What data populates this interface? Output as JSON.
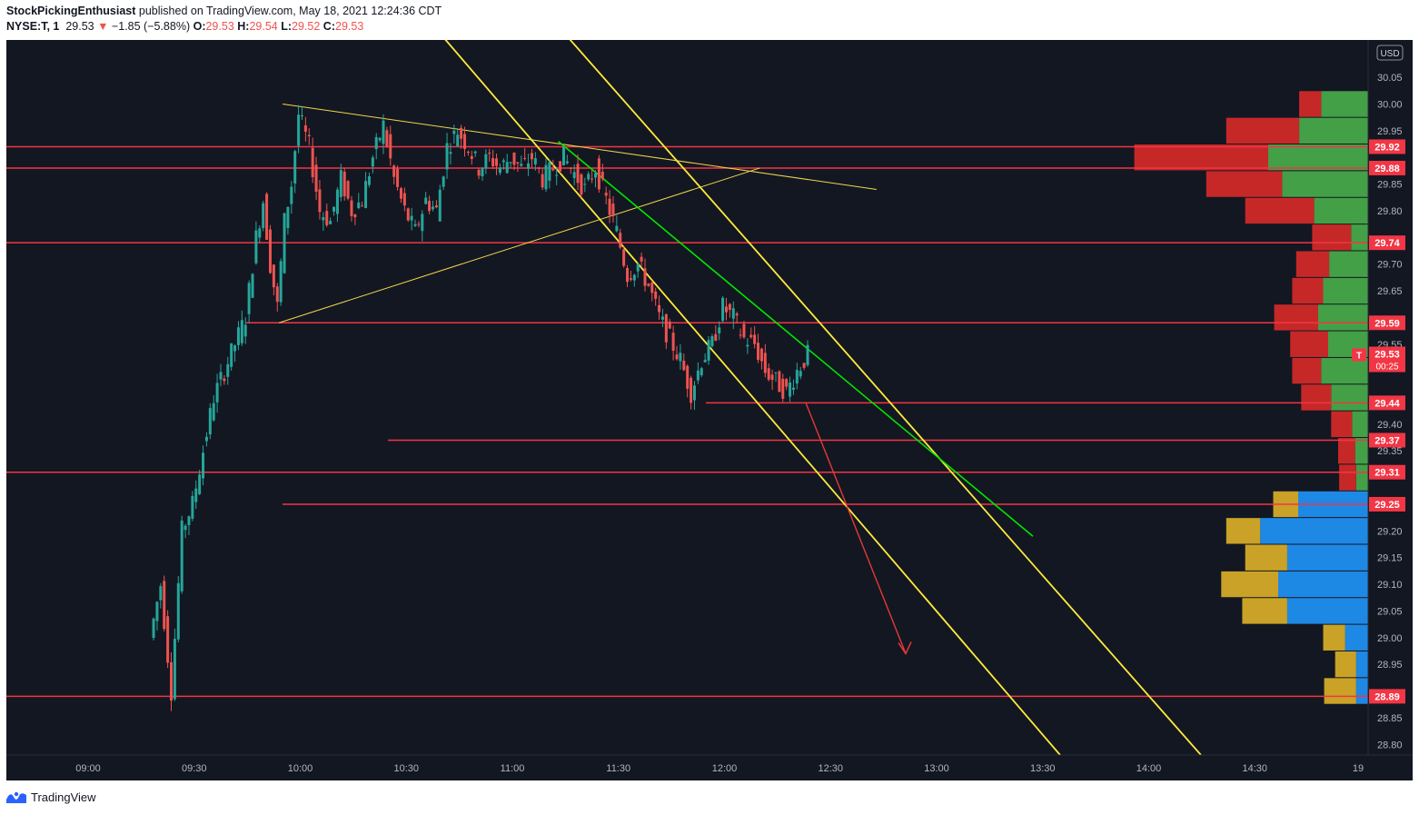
{
  "header": {
    "author": "StockPickingEnthusiast",
    "published": "published on TradingView.com, May 18, 2021 12:24:36 CDT",
    "symbol": "NYSE:T, 1",
    "last": "29.53",
    "change": "−1.85 (−5.88%)",
    "open_label": "O:",
    "open": "29.53",
    "high_label": "H:",
    "high": "29.54",
    "low_label": "L:",
    "low": "29.52",
    "close_label": "C:",
    "close": "29.53"
  },
  "footer": {
    "brand": "TradingView"
  },
  "colors": {
    "background": "#131722",
    "up": "#26a69a",
    "down": "#ef5350",
    "level_line": "#f23645",
    "channel": "#ffeb3b",
    "triangle": "#f2d64b",
    "trendline": "#00e600",
    "arrow": "#e53935",
    "vp_up": "#43a047",
    "vp_down": "#c62828",
    "vp_up_lower": "#1e88e5",
    "vp_down_lower": "#c9a227"
  },
  "chart_data": {
    "type": "candlestick",
    "currency": "USD",
    "ylim": [
      28.78,
      30.12
    ],
    "x_tick_labels": [
      "09:00",
      "09:30",
      "10:00",
      "10:30",
      "11:00",
      "11:30",
      "12:00",
      "12:30",
      "13:00",
      "13:30",
      "14:00",
      "14:30",
      "19"
    ],
    "y_tick_values": [
      "30.05",
      "30.00",
      "29.95",
      "29.85",
      "29.80",
      "29.70",
      "29.65",
      "29.55",
      "29.40",
      "29.35",
      "29.20",
      "29.15",
      "29.10",
      "29.05",
      "29.00",
      "28.95",
      "28.85",
      "28.80"
    ],
    "price_levels": [
      {
        "price": 29.92,
        "label": "29.92"
      },
      {
        "price": 29.88,
        "label": "29.88"
      },
      {
        "price": 29.74,
        "label": "29.74"
      },
      {
        "price": 29.59,
        "label": "29.59"
      },
      {
        "price": 29.44,
        "label": "29.44"
      },
      {
        "price": 29.37,
        "label": "29.37"
      },
      {
        "price": 29.31,
        "label": "29.31"
      },
      {
        "price": 29.25,
        "label": "29.25"
      },
      {
        "price": 28.89,
        "label": "28.89"
      }
    ],
    "current_price": {
      "value": 29.53,
      "label": "29.53",
      "symbol": "T",
      "countdown": "00:25"
    },
    "price_path": [
      [
        "09:18",
        29.0
      ],
      [
        "09:21",
        29.1
      ],
      [
        "09:24",
        28.9
      ],
      [
        "09:27",
        29.2
      ],
      [
        "09:30",
        29.25
      ],
      [
        "09:33",
        29.35
      ],
      [
        "09:36",
        29.45
      ],
      [
        "09:39",
        29.5
      ],
      [
        "09:42",
        29.55
      ],
      [
        "09:45",
        29.6
      ],
      [
        "09:48",
        29.75
      ],
      [
        "09:50",
        29.82
      ],
      [
        "09:52",
        29.7
      ],
      [
        "09:54",
        29.62
      ],
      [
        "09:56",
        29.78
      ],
      [
        "09:58",
        29.85
      ],
      [
        "10:00",
        29.98
      ],
      [
        "10:03",
        29.92
      ],
      [
        "10:06",
        29.8
      ],
      [
        "10:09",
        29.78
      ],
      [
        "10:12",
        29.86
      ],
      [
        "10:15",
        29.8
      ],
      [
        "10:18",
        29.82
      ],
      [
        "10:21",
        29.9
      ],
      [
        "10:24",
        29.96
      ],
      [
        "10:27",
        29.86
      ],
      [
        "10:30",
        29.8
      ],
      [
        "10:33",
        29.76
      ],
      [
        "10:36",
        29.82
      ],
      [
        "10:39",
        29.8
      ],
      [
        "10:42",
        29.92
      ],
      [
        "10:45",
        29.95
      ],
      [
        "10:48",
        29.92
      ],
      [
        "10:51",
        29.88
      ],
      [
        "10:54",
        29.9
      ],
      [
        "10:57",
        29.88
      ],
      [
        "11:00",
        29.9
      ],
      [
        "11:03",
        29.88
      ],
      [
        "11:06",
        29.9
      ],
      [
        "11:09",
        29.86
      ],
      [
        "11:12",
        29.88
      ],
      [
        "11:15",
        29.9
      ],
      [
        "11:18",
        29.87
      ],
      [
        "11:21",
        29.84
      ],
      [
        "11:24",
        29.88
      ],
      [
        "11:27",
        29.82
      ],
      [
        "11:30",
        29.76
      ],
      [
        "11:33",
        29.68
      ],
      [
        "11:36",
        29.7
      ],
      [
        "11:39",
        29.66
      ],
      [
        "11:42",
        29.6
      ],
      [
        "11:45",
        29.56
      ],
      [
        "11:48",
        29.52
      ],
      [
        "11:51",
        29.46
      ],
      [
        "11:54",
        29.52
      ],
      [
        "11:57",
        29.55
      ],
      [
        "12:00",
        29.62
      ],
      [
        "12:03",
        29.6
      ],
      [
        "12:06",
        29.56
      ],
      [
        "12:09",
        29.55
      ],
      [
        "12:12",
        29.5
      ],
      [
        "12:15",
        29.48
      ],
      [
        "12:18",
        29.46
      ],
      [
        "12:21",
        29.5
      ],
      [
        "12:24",
        29.53
      ]
    ],
    "volume_profile": [
      {
        "price": 30.0,
        "up": 0.47,
        "down": 0.22
      },
      {
        "price": 29.95,
        "up": 0.69,
        "down": 0.73
      },
      {
        "price": 29.9,
        "up": 1.0,
        "down": 1.34
      },
      {
        "price": 29.85,
        "up": 0.86,
        "down": 0.76
      },
      {
        "price": 29.8,
        "up": 0.54,
        "down": 0.69
      },
      {
        "price": 29.75,
        "up": 0.17,
        "down": 0.39
      },
      {
        "price": 29.7,
        "up": 0.39,
        "down": 0.33
      },
      {
        "price": 29.65,
        "up": 0.45,
        "down": 0.31
      },
      {
        "price": 29.6,
        "up": 0.5,
        "down": 0.44
      },
      {
        "price": 29.55,
        "up": 0.4,
        "down": 0.38
      },
      {
        "price": 29.5,
        "up": 0.47,
        "down": 0.29
      },
      {
        "price": 29.45,
        "up": 0.37,
        "down": 0.3
      },
      {
        "price": 29.4,
        "up": 0.16,
        "down": 0.21
      },
      {
        "price": 29.35,
        "up": 0.13,
        "down": 0.17
      },
      {
        "price": 29.3,
        "up": 0.12,
        "down": 0.17
      },
      {
        "price": 29.25,
        "up": 0.7,
        "down": 0.25
      },
      {
        "price": 29.2,
        "up": 1.08,
        "down": 0.34
      },
      {
        "price": 29.15,
        "up": 0.81,
        "down": 0.42
      },
      {
        "price": 29.1,
        "up": 0.9,
        "down": 0.57
      },
      {
        "price": 29.05,
        "up": 0.81,
        "down": 0.45
      },
      {
        "price": 29.0,
        "up": 0.23,
        "down": 0.22
      },
      {
        "price": 28.95,
        "up": 0.12,
        "down": 0.21
      },
      {
        "price": 28.9,
        "up": 0.12,
        "down": 0.32
      }
    ]
  }
}
